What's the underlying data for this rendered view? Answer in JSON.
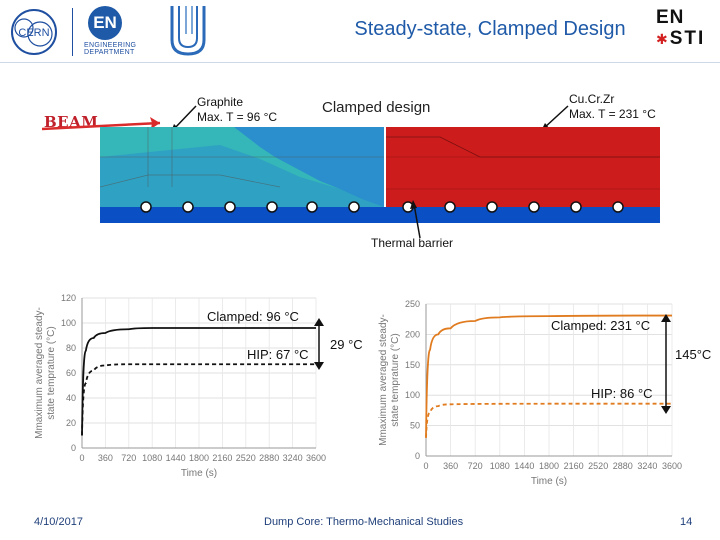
{
  "header": {
    "title": "Steady-state, Clamped Design",
    "logos": {
      "cern": "CERN",
      "en_big": "EN",
      "en_small_1": "ENGINEERING",
      "en_small_2": "DEPARTMENT",
      "ensti_1": "EN",
      "ensti_2": "STI"
    }
  },
  "diagram": {
    "beam_label": "BEAM",
    "graphite_line1": "Graphite",
    "graphite_line2": "Max. T = 96 °C",
    "clamped_design": "Clamped design",
    "cucrzr_line1": "Cu.Cr.Zr",
    "cucrzr_line2": "Max. T = 231 °C",
    "thermal_barrier": "Thermal barrier",
    "colors": {
      "graphite": "#2a8fcc",
      "graphite_hot": "#35b6b8",
      "copper": "#cc1c1c",
      "cooling": "#0a4fc4",
      "arrow": "#d92b2b"
    }
  },
  "charts": {
    "between_label": "29 °C",
    "right_label": "145°C",
    "left": {
      "ylabel_line1": "Mmaximum averaged steady-",
      "ylabel_line2": "state temprature (°C)",
      "xlabel": "Time (s)",
      "annot_clamped": "Clamped: 96 °C",
      "annot_hip": "HIP: 67 °C"
    },
    "right": {
      "ylabel_line1": "Mmaximum averaged steady-",
      "ylabel_line2": "state temprature (°C)",
      "xlabel": "Time (s)",
      "annot_clamped": "Clamped: 231 °C",
      "annot_hip": "HIP: 86 °C"
    }
  },
  "chart_data": [
    {
      "type": "line",
      "xlabel": "Time (s)",
      "ylabel": "Mmaximum averaged steady-state temprature (°C)",
      "xlim": [
        0,
        3600
      ],
      "ylim": [
        0,
        120
      ],
      "xticks": [
        "0",
        "360",
        "720",
        "1080",
        "1440",
        "1800",
        "2160",
        "2520",
        "2880",
        "3240",
        "3600"
      ],
      "yticks": [
        "0",
        "20",
        "40",
        "60",
        "80",
        "100",
        "120"
      ],
      "grid": true,
      "series": [
        {
          "style": "solid",
          "color": "#111111",
          "x": [
            0,
            60,
            180,
            360,
            720,
            1080,
            1800,
            3600
          ],
          "y": [
            10,
            78,
            88,
            92,
            95,
            96,
            96,
            96
          ]
        },
        {
          "style": "dashed",
          "color": "#111111",
          "x": [
            0,
            60,
            180,
            360,
            720,
            1800,
            3600
          ],
          "y": [
            10,
            52,
            62,
            66,
            67,
            67,
            67
          ]
        }
      ]
    },
    {
      "type": "line",
      "xlabel": "Time (s)",
      "ylabel": "Mmaximum averaged steady-state temprature (°C)",
      "xlim": [
        0,
        3600
      ],
      "ylim": [
        0,
        250
      ],
      "xticks": [
        "0",
        "360",
        "720",
        "1080",
        "1440",
        "1800",
        "2160",
        "2520",
        "2880",
        "3240",
        "3600"
      ],
      "yticks": [
        "0",
        "50",
        "100",
        "150",
        "200",
        "250"
      ],
      "grid": true,
      "series": [
        {
          "style": "solid",
          "color": "#e07b1f",
          "x": [
            0,
            60,
            180,
            360,
            720,
            1080,
            1800,
            3600
          ],
          "y": [
            30,
            175,
            200,
            210,
            222,
            228,
            230,
            231
          ]
        },
        {
          "style": "dashed",
          "color": "#e07b1f",
          "x": [
            0,
            60,
            180,
            360,
            1800,
            3600
          ],
          "y": [
            30,
            72,
            82,
            85,
            86,
            86
          ]
        }
      ]
    }
  ],
  "footer": {
    "date": "4/10/2017",
    "center": "Dump Core: Thermo-Mechanical Studies",
    "page": "14"
  }
}
